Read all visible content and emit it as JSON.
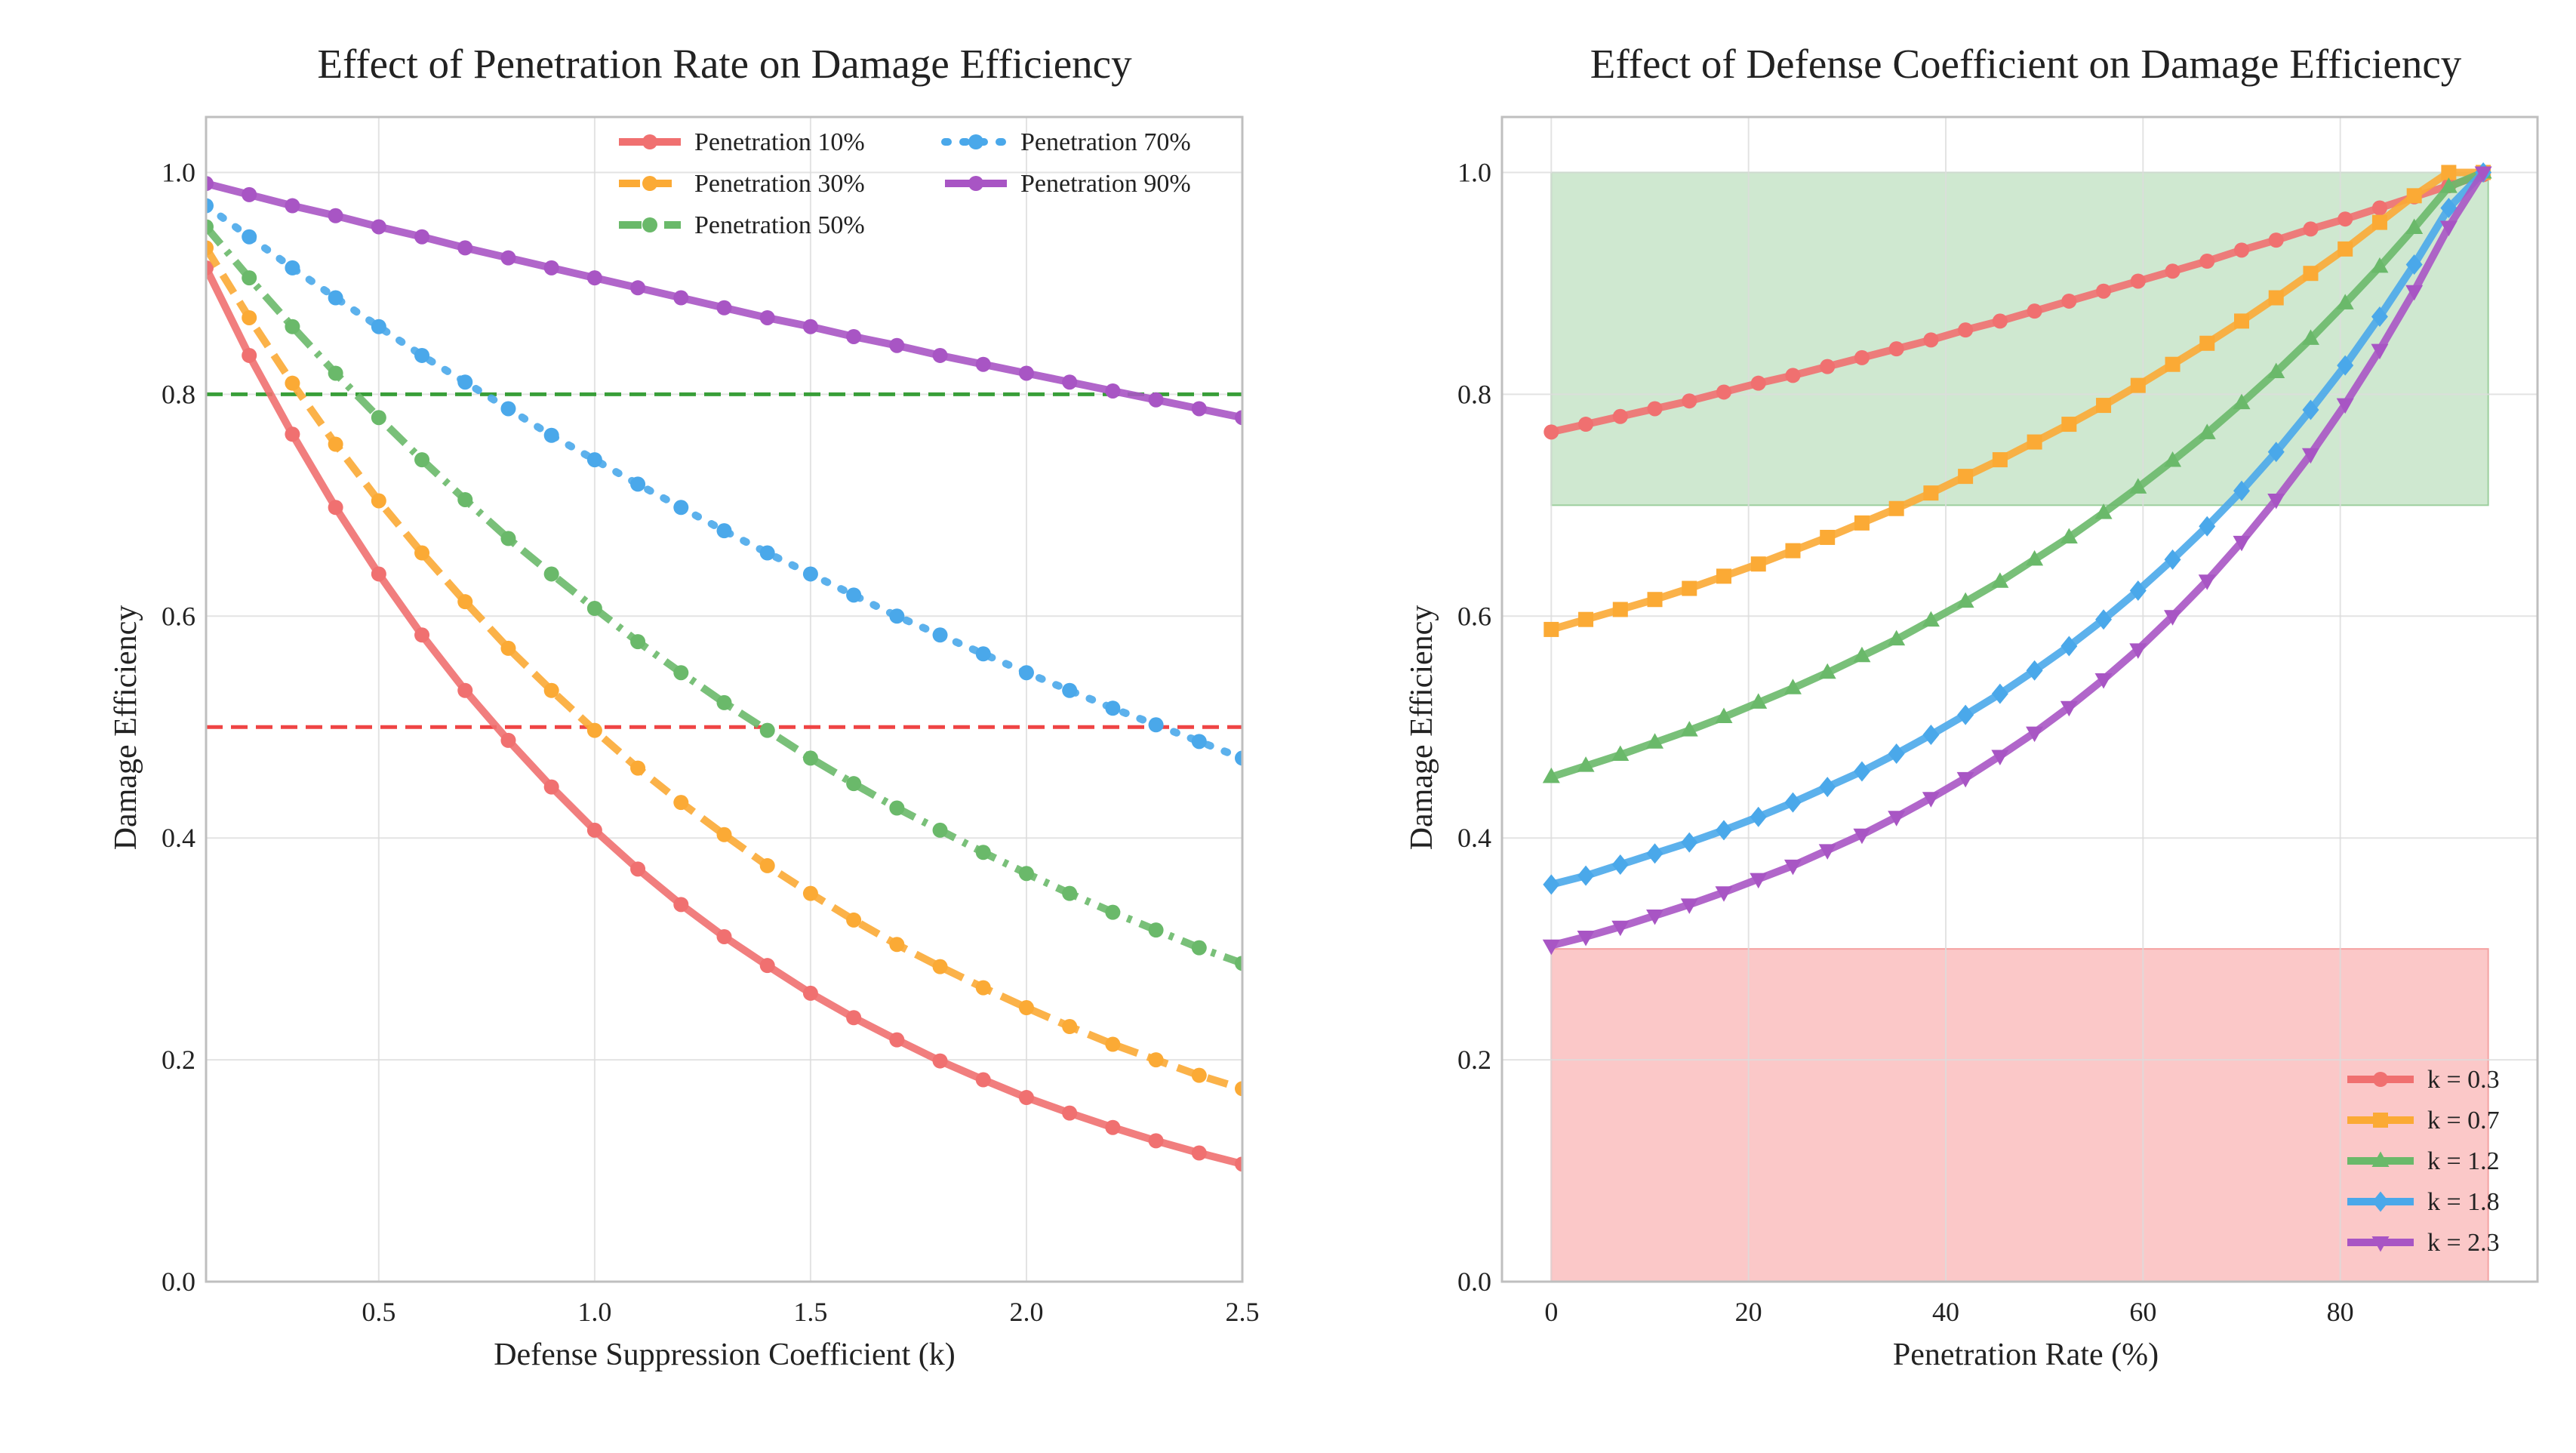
{
  "colors": {
    "red": "#f07070",
    "orange": "#fbaa35",
    "green": "#6ab96a",
    "blue": "#4aa8ea",
    "purple": "#a855c4",
    "ref_green": "#2e9a2e",
    "ref_red": "#ee3a3a",
    "band_green": "#cfe8d0",
    "band_red": "#fbc8c8"
  },
  "chart_data": [
    {
      "type": "line",
      "title": "Effect of Penetration Rate on Damage Efficiency",
      "xlabel": "Defense Suppression Coefficient (k)",
      "ylabel": "Damage Efficiency",
      "xlim": [
        0.1,
        2.5
      ],
      "ylim": [
        0.0,
        1.05
      ],
      "xticks": [
        "0.5",
        "1.0",
        "1.5",
        "2.0",
        "2.5"
      ],
      "yticks": [
        "0.0",
        "0.2",
        "0.4",
        "0.6",
        "0.8",
        "1.0"
      ],
      "grid": true,
      "legend_position": "top-right",
      "reference_lines": [
        {
          "y": 0.8,
          "color": "ref_green",
          "style": "dashed"
        },
        {
          "y": 0.5,
          "color": "ref_red",
          "style": "dashed"
        }
      ],
      "x": [
        0.1,
        0.2,
        0.3,
        0.4,
        0.5,
        0.6,
        0.7,
        0.8,
        0.9,
        1.0,
        1.1,
        1.2,
        1.3,
        1.4,
        1.5,
        1.6,
        1.7,
        1.8,
        1.9,
        2.0,
        2.1,
        2.2,
        2.3,
        2.4,
        2.5
      ],
      "series": [
        {
          "name": "Penetration 10%",
          "color": "red",
          "dash": "solid",
          "marker": "circle",
          "values": [
            0.914,
            0.835,
            0.764,
            0.698,
            0.638,
            0.583,
            0.533,
            0.488,
            0.446,
            0.407,
            0.372,
            0.34,
            0.311,
            0.285,
            0.26,
            0.238,
            0.218,
            0.199,
            0.182,
            0.166,
            0.152,
            0.139,
            0.127,
            0.116,
            0.106
          ]
        },
        {
          "name": "Penetration 30%",
          "color": "orange",
          "dash": "dashed",
          "marker": "circle",
          "values": [
            0.932,
            0.869,
            0.81,
            0.755,
            0.704,
            0.657,
            0.613,
            0.571,
            0.533,
            0.497,
            0.463,
            0.432,
            0.403,
            0.375,
            0.35,
            0.326,
            0.304,
            0.284,
            0.265,
            0.247,
            0.23,
            0.214,
            0.2,
            0.186,
            0.174
          ]
        },
        {
          "name": "Penetration 50%",
          "color": "green",
          "dash": "dashdot",
          "marker": "circle",
          "values": [
            0.951,
            0.905,
            0.861,
            0.819,
            0.779,
            0.741,
            0.705,
            0.67,
            0.638,
            0.607,
            0.577,
            0.549,
            0.522,
            0.497,
            0.472,
            0.449,
            0.427,
            0.407,
            0.387,
            0.368,
            0.35,
            0.333,
            0.317,
            0.301,
            0.287
          ]
        },
        {
          "name": "Penetration 70%",
          "color": "blue",
          "dash": "dotted",
          "marker": "circle",
          "values": [
            0.97,
            0.942,
            0.914,
            0.887,
            0.861,
            0.835,
            0.811,
            0.787,
            0.763,
            0.741,
            0.719,
            0.698,
            0.677,
            0.657,
            0.638,
            0.619,
            0.6,
            0.583,
            0.566,
            0.549,
            0.533,
            0.517,
            0.502,
            0.487,
            0.472
          ]
        },
        {
          "name": "Penetration 90%",
          "color": "purple",
          "dash": "solid",
          "marker": "circle",
          "values": [
            0.99,
            0.98,
            0.97,
            0.961,
            0.951,
            0.942,
            0.932,
            0.923,
            0.914,
            0.905,
            0.896,
            0.887,
            0.878,
            0.869,
            0.861,
            0.852,
            0.844,
            0.835,
            0.827,
            0.819,
            0.811,
            0.803,
            0.795,
            0.787,
            0.779
          ]
        }
      ]
    },
    {
      "type": "line",
      "title": "Effect of Defense Coefficient on Damage Efficiency",
      "xlabel": "Penetration Rate (%)",
      "ylabel": "Damage Efficiency",
      "xlim": [
        -5,
        100
      ],
      "ylim": [
        0.0,
        1.05
      ],
      "xticks": [
        "0",
        "20",
        "40",
        "60",
        "80"
      ],
      "yticks": [
        "0.0",
        "0.2",
        "0.4",
        "0.6",
        "0.8",
        "1.0"
      ],
      "grid": true,
      "legend_position": "bottom-right",
      "bands": [
        {
          "x": [
            0,
            95
          ],
          "y": [
            0.7,
            1.0
          ],
          "color": "band_green"
        },
        {
          "x": [
            0,
            95
          ],
          "y": [
            0.0,
            0.3
          ],
          "color": "band_red"
        }
      ],
      "x": [
        0,
        3.5,
        7,
        10.5,
        14,
        17.5,
        21,
        24.5,
        28,
        31.5,
        35,
        38.5,
        42,
        45.5,
        49,
        52.5,
        56,
        59.5,
        63,
        66.5,
        70,
        73.5,
        77,
        80.5,
        84,
        87.5,
        91,
        94.5
      ],
      "series": [
        {
          "name": "k = 0.3",
          "color": "red",
          "marker": "circle",
          "values": [
            0.766,
            0.773,
            0.78,
            0.787,
            0.794,
            0.802,
            0.81,
            0.817,
            0.825,
            0.833,
            0.841,
            0.849,
            0.858,
            0.866,
            0.875,
            0.884,
            0.893,
            0.902,
            0.911,
            0.92,
            0.93,
            0.939,
            0.949,
            0.958,
            0.968,
            0.978,
            0.988,
            0.998
          ]
        },
        {
          "name": "k = 0.7",
          "color": "orange",
          "marker": "square",
          "values": [
            0.588,
            0.597,
            0.606,
            0.615,
            0.625,
            0.636,
            0.647,
            0.659,
            0.671,
            0.684,
            0.697,
            0.711,
            0.726,
            0.741,
            0.757,
            0.773,
            0.79,
            0.808,
            0.827,
            0.846,
            0.866,
            0.887,
            0.909,
            0.931,
            0.955,
            0.979,
            1.0,
            1.0
          ]
        },
        {
          "name": "k = 1.2",
          "color": "green",
          "marker": "triangle-up",
          "values": [
            0.455,
            0.465,
            0.475,
            0.486,
            0.497,
            0.509,
            0.522,
            0.535,
            0.549,
            0.564,
            0.579,
            0.596,
            0.613,
            0.631,
            0.651,
            0.671,
            0.693,
            0.716,
            0.74,
            0.765,
            0.792,
            0.82,
            0.85,
            0.882,
            0.915,
            0.95,
            0.987,
            1.0
          ]
        },
        {
          "name": "k = 1.8",
          "color": "blue",
          "marker": "diamond",
          "values": [
            0.358,
            0.366,
            0.376,
            0.386,
            0.396,
            0.407,
            0.419,
            0.432,
            0.446,
            0.46,
            0.476,
            0.493,
            0.511,
            0.53,
            0.551,
            0.573,
            0.597,
            0.623,
            0.651,
            0.681,
            0.713,
            0.748,
            0.786,
            0.826,
            0.87,
            0.917,
            0.968,
            1.0
          ]
        },
        {
          "name": "k = 2.3",
          "color": "purple",
          "marker": "triangle-down",
          "values": [
            0.303,
            0.311,
            0.32,
            0.33,
            0.34,
            0.351,
            0.363,
            0.375,
            0.389,
            0.403,
            0.419,
            0.436,
            0.454,
            0.474,
            0.495,
            0.518,
            0.543,
            0.57,
            0.6,
            0.632,
            0.667,
            0.705,
            0.746,
            0.791,
            0.84,
            0.893,
            0.951,
            1.0
          ]
        }
      ]
    }
  ]
}
